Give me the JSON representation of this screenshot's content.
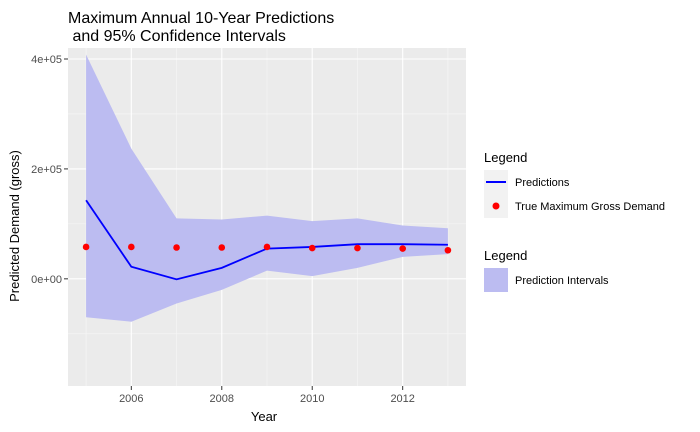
{
  "chart_data": {
    "type": "line",
    "title_line1": "Maximum Annual 10-Year Predictions",
    "title_line2": " and 95% Confidence Intervals",
    "xlabel": "Year",
    "ylabel": "Predicted Demand (gross)",
    "x": [
      2005,
      2006,
      2007,
      2008,
      2009,
      2010,
      2011,
      2012,
      2013
    ],
    "xlim": [
      2004.6,
      2013.4
    ],
    "ylim": [
      -195000,
      420000
    ],
    "x_ticks": [
      2006,
      2008,
      2010,
      2012
    ],
    "x_tick_labels": [
      "2006",
      "2008",
      "2010",
      "2012"
    ],
    "y_ticks": [
      0,
      200000,
      400000
    ],
    "y_tick_labels": [
      "0e+00",
      "2e+05",
      "4e+05"
    ],
    "grid": true,
    "legend_position": "right",
    "series": [
      {
        "name": "Predictions",
        "kind": "line",
        "color": "#0000ff",
        "values": [
          143000,
          22000,
          -1000,
          20000,
          55000,
          58000,
          63000,
          63000,
          62000
        ]
      },
      {
        "name": "True Maximum Gross Demand",
        "kind": "point",
        "color": "#ff0000",
        "values": [
          58000,
          58000,
          57000,
          57000,
          58000,
          56000,
          56000,
          55000,
          52000
        ]
      },
      {
        "name": "Prediction Intervals",
        "kind": "ribbon",
        "color": "#bcbcf1",
        "lower": [
          -70000,
          -78000,
          -45000,
          -20000,
          15000,
          5000,
          20000,
          40000,
          45000
        ],
        "upper": [
          408000,
          237000,
          110000,
          108000,
          115000,
          105000,
          110000,
          97000,
          92000
        ]
      }
    ],
    "legends": [
      {
        "title": "Legend",
        "items": [
          "Predictions",
          "True Maximum Gross Demand"
        ]
      },
      {
        "title": "Legend",
        "items": [
          "Prediction Intervals"
        ]
      }
    ]
  }
}
